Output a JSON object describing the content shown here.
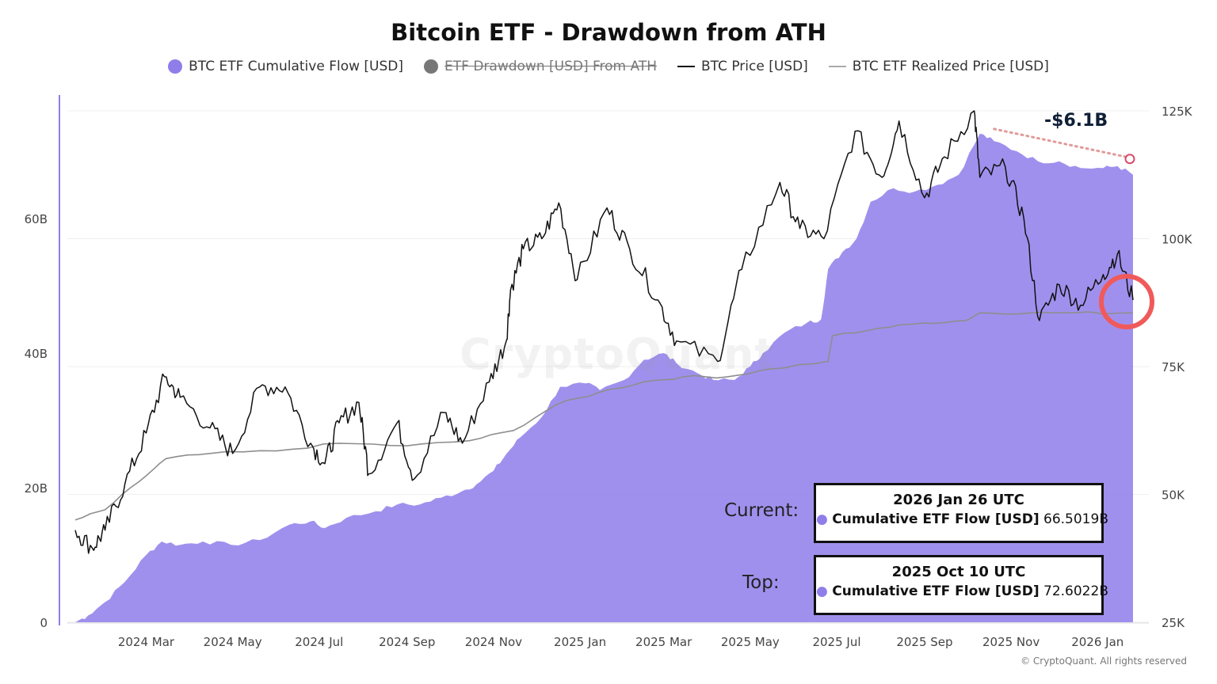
{
  "chart_data": {
    "type": "area",
    "title": "Bitcoin ETF - Drawdown from ATH",
    "legend": [
      {
        "name": "BTC ETF Cumulative Flow [USD]",
        "color": "#8f7dea",
        "marker": "dot",
        "visible": true
      },
      {
        "name": "ETF Drawdown [USD] From ATH",
        "color": "#777777",
        "marker": "dot",
        "visible": false
      },
      {
        "name": "BTC Price [USD]",
        "color": "#111111",
        "marker": "line",
        "visible": true
      },
      {
        "name": "BTC ETF Realized Price [USD]",
        "color": "#999999",
        "marker": "line",
        "visible": true
      }
    ],
    "x_ticks": [
      "2024 Mar",
      "2024 May",
      "2024 Jul",
      "2024 Sep",
      "2024 Nov",
      "2025 Jan",
      "2025 Mar",
      "2025 May",
      "2025 Jul",
      "2025 Sep",
      "2025 Nov",
      "2026 Jan"
    ],
    "x_range": [
      "2024-01-11",
      "2026-01-26"
    ],
    "y_left": {
      "ticks": [
        "0",
        "20B",
        "40B",
        "60B"
      ],
      "range": [
        0,
        76
      ]
    },
    "y_right": {
      "ticks": [
        "25K",
        "50K",
        "75K",
        "100K",
        "125K"
      ],
      "range": [
        25000,
        125000
      ]
    },
    "series": [
      {
        "name": "BTC ETF Cumulative Flow [USD]",
        "axis": "left",
        "unit": "B USD",
        "points": [
          [
            "2024-01-11",
            0
          ],
          [
            "2024-01-20",
            1
          ],
          [
            "2024-02-01",
            3
          ],
          [
            "2024-02-15",
            6
          ],
          [
            "2024-03-01",
            10
          ],
          [
            "2024-03-12",
            12
          ],
          [
            "2024-03-25",
            11.5
          ],
          [
            "2024-04-10",
            12
          ],
          [
            "2024-04-30",
            11.5
          ],
          [
            "2024-05-20",
            12.2
          ],
          [
            "2024-06-10",
            14.5
          ],
          [
            "2024-06-25",
            15
          ],
          [
            "2024-07-05",
            14
          ],
          [
            "2024-07-20",
            15.5
          ],
          [
            "2024-08-10",
            16.5
          ],
          [
            "2024-08-25",
            17.5
          ],
          [
            "2024-09-10",
            17.5
          ],
          [
            "2024-09-25",
            18.5
          ],
          [
            "2024-10-10",
            19.5
          ],
          [
            "2024-10-20",
            20.5
          ],
          [
            "2024-11-01",
            22.5
          ],
          [
            "2024-11-10",
            25
          ],
          [
            "2024-11-20",
            27.5
          ],
          [
            "2024-12-05",
            30.5
          ],
          [
            "2024-12-18",
            35
          ],
          [
            "2025-01-05",
            35.5
          ],
          [
            "2025-01-15",
            34.5
          ],
          [
            "2025-02-01",
            36
          ],
          [
            "2025-02-15",
            39
          ],
          [
            "2025-03-01",
            40
          ],
          [
            "2025-03-10",
            38.5
          ],
          [
            "2025-03-25",
            37
          ],
          [
            "2025-04-05",
            36
          ],
          [
            "2025-04-20",
            36
          ],
          [
            "2025-05-01",
            38
          ],
          [
            "2025-05-10",
            40
          ],
          [
            "2025-05-25",
            43
          ],
          [
            "2025-06-10",
            44.5
          ],
          [
            "2025-06-20",
            45
          ],
          [
            "2025-06-25",
            52.5
          ],
          [
            "2025-07-05",
            55
          ],
          [
            "2025-07-15",
            57
          ],
          [
            "2025-07-25",
            62.5
          ],
          [
            "2025-08-10",
            64.5
          ],
          [
            "2025-08-25",
            64
          ],
          [
            "2025-09-10",
            65
          ],
          [
            "2025-09-25",
            66.5
          ],
          [
            "2025-10-10",
            72.6
          ],
          [
            "2025-10-20",
            71.5
          ],
          [
            "2025-11-05",
            70
          ],
          [
            "2025-11-20",
            68.5
          ],
          [
            "2025-12-05",
            68.5
          ],
          [
            "2025-12-20",
            67.5
          ],
          [
            "2026-01-05",
            67.5
          ],
          [
            "2026-01-15",
            67.8
          ],
          [
            "2026-01-26",
            66.5
          ]
        ]
      },
      {
        "name": "BTC Price [USD]",
        "axis": "right",
        "unit": "USD",
        "points": [
          [
            "2024-01-11",
            43000
          ],
          [
            "2024-01-23",
            39500
          ],
          [
            "2024-02-01",
            43000
          ],
          [
            "2024-02-15",
            52000
          ],
          [
            "2024-03-01",
            62000
          ],
          [
            "2024-03-14",
            73000
          ],
          [
            "2024-03-25",
            69000
          ],
          [
            "2024-04-15",
            63000
          ],
          [
            "2024-05-01",
            58000
          ],
          [
            "2024-05-20",
            71000
          ],
          [
            "2024-06-07",
            71000
          ],
          [
            "2024-06-25",
            60000
          ],
          [
            "2024-07-05",
            56000
          ],
          [
            "2024-07-15",
            64000
          ],
          [
            "2024-07-29",
            68000
          ],
          [
            "2024-08-05",
            54000
          ],
          [
            "2024-08-25",
            64000
          ],
          [
            "2024-09-06",
            53000
          ],
          [
            "2024-09-27",
            66000
          ],
          [
            "2024-10-10",
            60000
          ],
          [
            "2024-10-29",
            72000
          ],
          [
            "2024-11-10",
            80000
          ],
          [
            "2024-11-13",
            90000
          ],
          [
            "2024-11-22",
            98000
          ],
          [
            "2024-12-05",
            100000
          ],
          [
            "2024-12-17",
            107000
          ],
          [
            "2024-12-30",
            92000
          ],
          [
            "2025-01-20",
            106000
          ],
          [
            "2025-02-05",
            98000
          ],
          [
            "2025-02-25",
            88000
          ],
          [
            "2025-03-10",
            80000
          ],
          [
            "2025-04-08",
            76000
          ],
          [
            "2025-04-25",
            94000
          ],
          [
            "2025-05-22",
            111000
          ],
          [
            "2025-06-05",
            102000
          ],
          [
            "2025-06-22",
            100000
          ],
          [
            "2025-07-14",
            121000
          ],
          [
            "2025-08-02",
            112000
          ],
          [
            "2025-08-14",
            123000
          ],
          [
            "2025-09-01",
            108000
          ],
          [
            "2025-09-15",
            116000
          ],
          [
            "2025-10-06",
            125000
          ],
          [
            "2025-10-10",
            112000
          ],
          [
            "2025-10-28",
            114000
          ],
          [
            "2025-11-10",
            104000
          ],
          [
            "2025-11-21",
            84000
          ],
          [
            "2025-12-05",
            91000
          ],
          [
            "2025-12-20",
            87000
          ],
          [
            "2026-01-05",
            93000
          ],
          [
            "2026-01-15",
            97000
          ],
          [
            "2026-01-26",
            88000
          ]
        ]
      },
      {
        "name": "BTC ETF Realized Price [USD]",
        "axis": "right",
        "unit": "USD",
        "points": [
          [
            "2024-01-11",
            45000
          ],
          [
            "2024-02-01",
            47000
          ],
          [
            "2024-02-25",
            52500
          ],
          [
            "2024-03-15",
            57000
          ],
          [
            "2024-04-15",
            58000
          ],
          [
            "2024-06-01",
            58500
          ],
          [
            "2024-07-15",
            60000
          ],
          [
            "2024-09-01",
            59500
          ],
          [
            "2024-10-15",
            60500
          ],
          [
            "2024-11-15",
            62500
          ],
          [
            "2024-12-15",
            67500
          ],
          [
            "2025-01-15",
            70000
          ],
          [
            "2025-02-15",
            72000
          ],
          [
            "2025-03-15",
            73000
          ],
          [
            "2025-04-15",
            73000
          ],
          [
            "2025-05-15",
            74500
          ],
          [
            "2025-06-25",
            76000
          ],
          [
            "2025-06-28",
            81000
          ],
          [
            "2025-07-31",
            82500
          ],
          [
            "2025-08-31",
            83500
          ],
          [
            "2025-09-30",
            84000
          ],
          [
            "2025-10-10",
            85500
          ],
          [
            "2025-11-15",
            85500
          ],
          [
            "2025-12-15",
            85500
          ],
          [
            "2026-01-26",
            85500
          ]
        ]
      }
    ],
    "annotations": {
      "drawdown_label": "-$6.1B",
      "current_label": "Current:",
      "current_date": "2026 Jan 26 UTC",
      "current_series": "Cumulative ETF Flow [USD]",
      "current_value": "66.5019B",
      "top_label": "Top:",
      "top_date": "2025 Oct 10 UTC",
      "top_series": "Cumulative ETF Flow [USD]",
      "top_value": "72.6022B"
    },
    "colors": {
      "flow": "#8f7dea",
      "price": "#111111",
      "realized": "#8e8e8e",
      "dd_line": "#e29a9a",
      "circle": "#f05a5a"
    }
  },
  "watermark": "CryptoQuant",
  "copyright": "© CryptoQuant. All rights reserved"
}
